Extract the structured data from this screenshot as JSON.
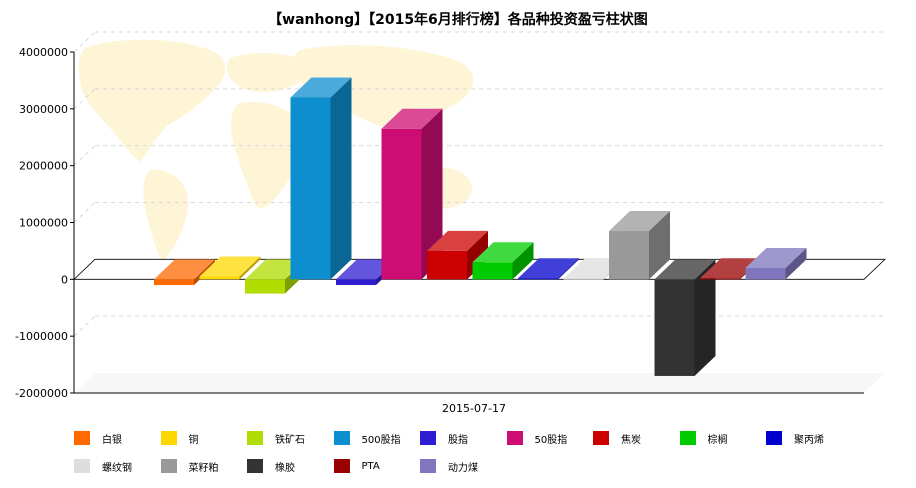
{
  "chart_data": {
    "type": "bar",
    "title": "【wanhong】【2015年6月排行榜】各品种投资盈亏柱状图",
    "xlabel": "",
    "ylabel": "",
    "categories": [
      "2015-07-17"
    ],
    "ylim": [
      -2000000,
      4000000
    ],
    "yticks": [
      "4000000",
      "3000000",
      "2000000",
      "1000000",
      "0",
      "-1000000",
      "-2000000"
    ],
    "grid": true,
    "legend": "bottom",
    "series": [
      {
        "name": "白银",
        "color": "#ff6a00",
        "values": [
          -100000
        ]
      },
      {
        "name": "铜",
        "color": "#ffd700",
        "values": [
          50000
        ]
      },
      {
        "name": "铁矿石",
        "color": "#b0dc00",
        "values": [
          -250000
        ]
      },
      {
        "name": "500股指",
        "color": "#0d8ecf",
        "values": [
          3200000
        ]
      },
      {
        "name": "股指",
        "color": "#2f1dd2",
        "values": [
          -100000
        ]
      },
      {
        "name": "50股指",
        "color": "#cd0d74",
        "values": [
          2650000
        ]
      },
      {
        "name": "焦炭",
        "color": "#cc0000",
        "values": [
          500000
        ]
      },
      {
        "name": "棕榈",
        "color": "#00cc00",
        "values": [
          300000
        ]
      },
      {
        "name": "聚丙烯",
        "color": "#0000cc",
        "values": [
          20000
        ]
      },
      {
        "name": "螺纹钢",
        "color": "#dddddd",
        "values": [
          10000
        ]
      },
      {
        "name": "菜籽粕",
        "color": "#999999",
        "values": [
          850000
        ]
      },
      {
        "name": "橡胶",
        "color": "#333333",
        "values": [
          -1700000
        ]
      },
      {
        "name": "PTA",
        "color": "#990000",
        "values": [
          20000
        ]
      },
      {
        "name": "动力煤",
        "color": "#7f76bd",
        "values": [
          200000
        ]
      }
    ]
  }
}
